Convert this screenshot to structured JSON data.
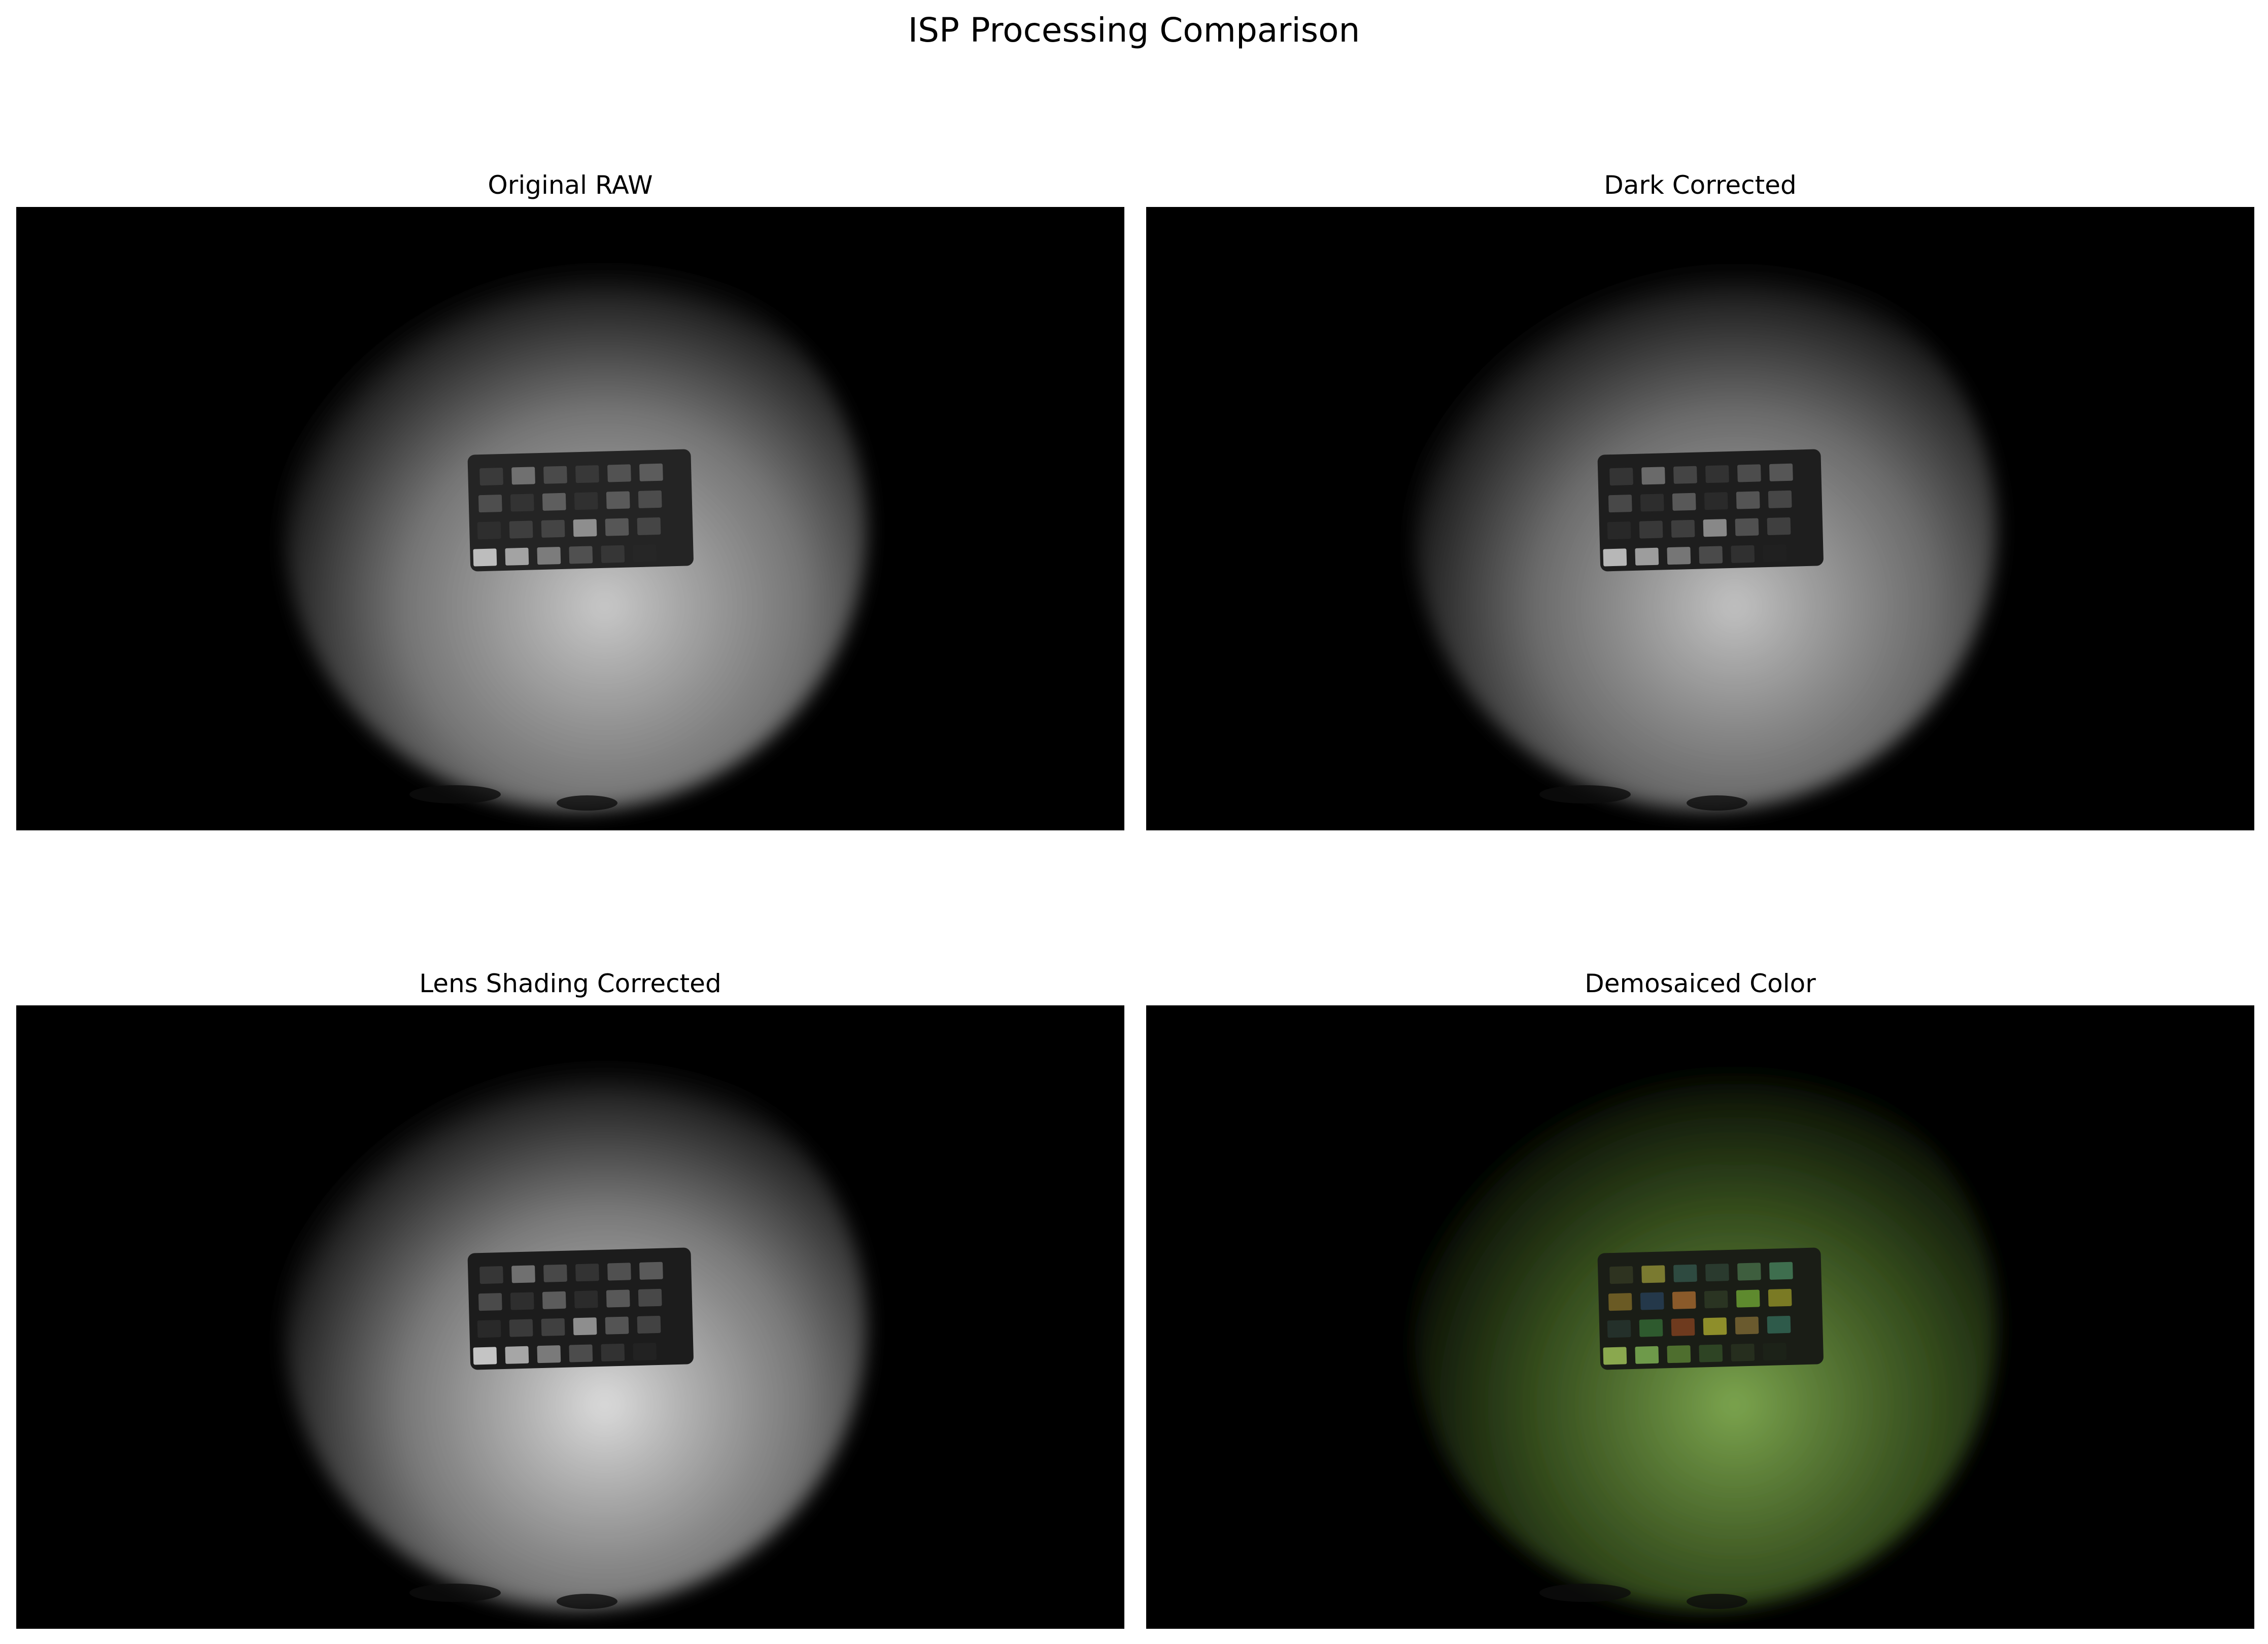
{
  "figure": {
    "title": "ISP Processing Comparison"
  },
  "panels": [
    {
      "title": "Original RAW",
      "colors": {
        "light": "#c9c9c9",
        "shade": "#8a8a8a",
        "chart_body": "#242424",
        "patches": [
          "#3a3a3a",
          "#707070",
          "#4a4a4a",
          "#383838",
          "#525252",
          "#5c5c5c",
          "#4e4e4e",
          "#333333",
          "#5e5e5e",
          "#303030",
          "#5a5a5a",
          "#4c4c4c",
          "#2e2e2e",
          "#3e3e3e",
          "#444444",
          "#8e8e8e",
          "#565656",
          "#454545",
          "#bdbdbd",
          "#a3a3a3",
          "#7c7c7c",
          "#505050",
          "#363636",
          "#262626"
        ]
      }
    },
    {
      "title": "Dark Corrected",
      "colors": {
        "light": "#c2c2c2",
        "shade": "#7e7e7e",
        "chart_body": "#1e1e1e",
        "patches": [
          "#343434",
          "#6a6a6a",
          "#444444",
          "#323232",
          "#4c4c4c",
          "#565656",
          "#484848",
          "#2d2d2d",
          "#585858",
          "#2a2a2a",
          "#545454",
          "#464646",
          "#282828",
          "#383838",
          "#3e3e3e",
          "#888888",
          "#505050",
          "#3f3f3f",
          "#b7b7b7",
          "#9d9d9d",
          "#767676",
          "#4a4a4a",
          "#303030",
          "#202020"
        ]
      }
    },
    {
      "title": "Lens Shading Corrected",
      "colors": {
        "light": "#dcdcdc",
        "shade": "#8e8e8e",
        "chart_body": "#1c1c1c",
        "patches": [
          "#363636",
          "#707070",
          "#484848",
          "#333333",
          "#505050",
          "#5a5a5a",
          "#4a4a4a",
          "#2e2e2e",
          "#5c5c5c",
          "#2b2b2b",
          "#585858",
          "#484848",
          "#292929",
          "#3a3a3a",
          "#404040",
          "#8e8e8e",
          "#545454",
          "#424242",
          "#c4c4c4",
          "#a6a6a6",
          "#7a7a7a",
          "#4c4c4c",
          "#323232",
          "#222222"
        ]
      }
    },
    {
      "title": "Demosaiced Color",
      "colors": {
        "light": "#7ca54e",
        "shade": "#3e5a22",
        "chart_body": "#1a1d16",
        "patches": [
          "#2e3320",
          "#7a7a30",
          "#2e4a40",
          "#2a3a2e",
          "#3e5e3e",
          "#3e6e4e",
          "#6a5a24",
          "#24384a",
          "#8a5a2a",
          "#2a3422",
          "#5e8a2e",
          "#7a7a24",
          "#24302a",
          "#2e5a2e",
          "#6e3a1e",
          "#8e8e2a",
          "#6a5a2e",
          "#2e5a4a",
          "#8aa84e",
          "#6e9a4a",
          "#4e6e2e",
          "#2e4424",
          "#262e1e",
          "#1c2218"
        ]
      }
    }
  ]
}
